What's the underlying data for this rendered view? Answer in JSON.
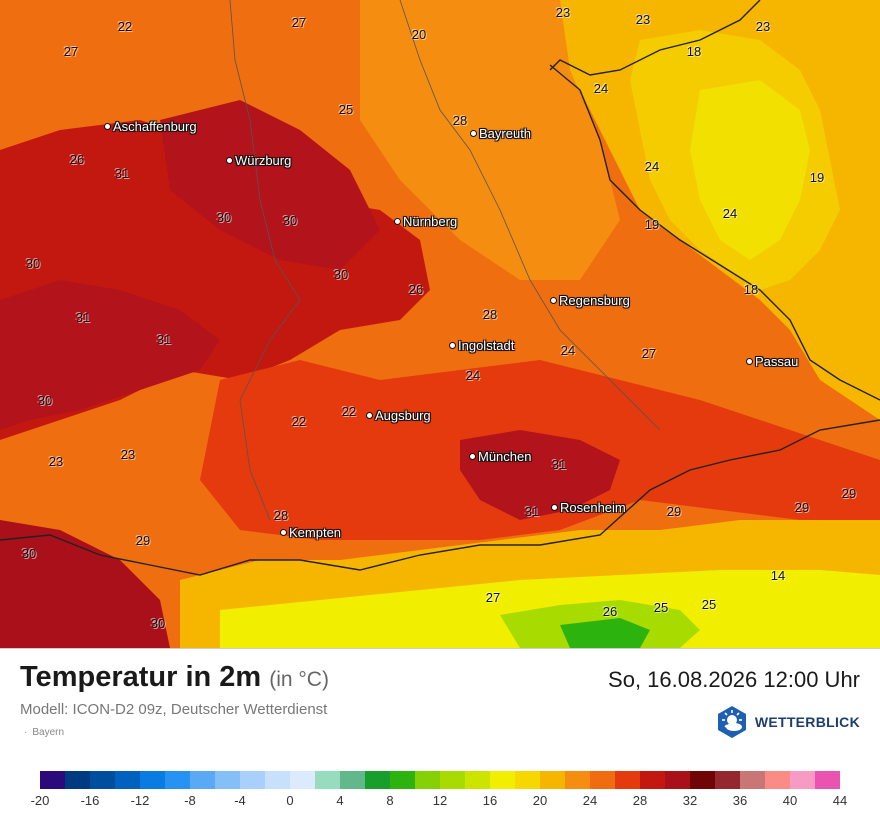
{
  "map": {
    "cities": [
      {
        "name": "Aschaffenburg"
      },
      {
        "name": "Würzburg"
      },
      {
        "name": "Bayreuth"
      },
      {
        "name": "Nürnberg"
      },
      {
        "name": "Regensburg"
      },
      {
        "name": "Ingolstadt"
      },
      {
        "name": "Passau"
      },
      {
        "name": "Augsburg"
      },
      {
        "name": "München"
      },
      {
        "name": "Rosenheim"
      },
      {
        "name": "Kempten"
      }
    ],
    "temperatures": [
      "22",
      "27",
      "20",
      "23",
      "23",
      "23",
      "27",
      "18",
      "24",
      "25",
      "28",
      "26",
      "31",
      "24",
      "19",
      "30",
      "30",
      "24",
      "19",
      "30",
      "30",
      "26",
      "18",
      "28",
      "31",
      "31",
      "24",
      "27",
      "30",
      "24",
      "22",
      "22",
      "23",
      "23",
      "31",
      "29",
      "31",
      "29",
      "28",
      "29",
      "30",
      "29",
      "14",
      "27",
      "26",
      "25",
      "25",
      "30"
    ]
  },
  "footer": {
    "title": "Temperatur in 2m",
    "unit": "(in °C)",
    "datetime": "So, 16.08.2026 12:00 Uhr",
    "model": "Modell: ICON-D2 09z, Deutscher Wetterdienst",
    "region": "Bayern",
    "logo_text": "WETTERBLICK",
    "logo_icon": "sun-cloud-hexagon-icon"
  },
  "legend": {
    "colors": [
      "#2d0a7c",
      "#003b82",
      "#004f9e",
      "#0061bf",
      "#0a7be0",
      "#2693f2",
      "#5aa9f5",
      "#85bff8",
      "#a8d0fa",
      "#c7e0fb",
      "#dbeafc",
      "#98dcc0",
      "#62b88a",
      "#189e2a",
      "#2db30e",
      "#85d106",
      "#a8db00",
      "#cbe400",
      "#f2ee00",
      "#f6d800",
      "#f6b600",
      "#f48d10",
      "#ef6d10",
      "#e43a0e",
      "#c31810",
      "#a9101a",
      "#700406",
      "#94282e",
      "#c87676",
      "#fb8b86",
      "#f79bc4",
      "#ea54b0"
    ],
    "ticks": [
      "-20",
      "-16",
      "-12",
      "-8",
      "-4",
      "0",
      "4",
      "8",
      "12",
      "16",
      "20",
      "24",
      "28",
      "32",
      "36",
      "40",
      "44"
    ]
  }
}
